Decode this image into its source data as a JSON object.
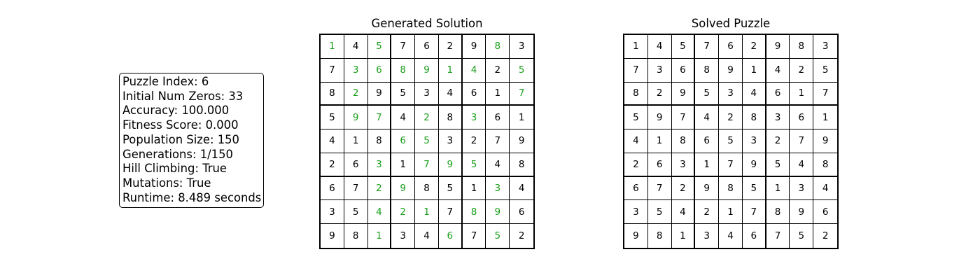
{
  "info": {
    "lines": [
      "Puzzle Index: 6",
      "Initial Num Zeros: 33",
      "Accuracy: 100.000",
      "Fitness Score: 0.000",
      "Population Size: 150",
      "Generations: 1/150",
      "Hill Climbing: True",
      "Mutations: True",
      "Runtime: 8.489 seconds"
    ]
  },
  "colors": {
    "filled": "#1a9e1a",
    "given": "#000000"
  },
  "boards": [
    {
      "title": "Generated Solution",
      "cells": [
        [
          1,
          4,
          5,
          7,
          6,
          2,
          9,
          8,
          3
        ],
        [
          7,
          3,
          6,
          8,
          9,
          1,
          4,
          2,
          5
        ],
        [
          8,
          2,
          9,
          5,
          3,
          4,
          6,
          1,
          7
        ],
        [
          5,
          9,
          7,
          4,
          2,
          8,
          3,
          6,
          1
        ],
        [
          4,
          1,
          8,
          6,
          5,
          3,
          2,
          7,
          9
        ],
        [
          2,
          6,
          3,
          1,
          7,
          9,
          5,
          4,
          8
        ],
        [
          6,
          7,
          2,
          9,
          8,
          5,
          1,
          3,
          4
        ],
        [
          3,
          5,
          4,
          2,
          1,
          7,
          8,
          9,
          6
        ],
        [
          9,
          8,
          1,
          3,
          4,
          6,
          7,
          5,
          2
        ]
      ],
      "highlight": [
        [
          1,
          0,
          1,
          0,
          0,
          0,
          0,
          1,
          0
        ],
        [
          0,
          1,
          1,
          1,
          1,
          1,
          1,
          0,
          1
        ],
        [
          0,
          1,
          0,
          0,
          0,
          0,
          0,
          0,
          1
        ],
        [
          0,
          1,
          1,
          0,
          1,
          0,
          1,
          0,
          0
        ],
        [
          0,
          0,
          0,
          1,
          1,
          0,
          0,
          0,
          0
        ],
        [
          0,
          0,
          1,
          0,
          1,
          1,
          1,
          0,
          0
        ],
        [
          0,
          0,
          1,
          1,
          0,
          0,
          0,
          1,
          0
        ],
        [
          0,
          0,
          1,
          1,
          1,
          0,
          1,
          1,
          0
        ],
        [
          0,
          0,
          1,
          0,
          0,
          1,
          0,
          1,
          0
        ]
      ]
    },
    {
      "title": "Solved Puzzle",
      "cells": [
        [
          1,
          4,
          5,
          7,
          6,
          2,
          9,
          8,
          3
        ],
        [
          7,
          3,
          6,
          8,
          9,
          1,
          4,
          2,
          5
        ],
        [
          8,
          2,
          9,
          5,
          3,
          4,
          6,
          1,
          7
        ],
        [
          5,
          9,
          7,
          4,
          2,
          8,
          3,
          6,
          1
        ],
        [
          4,
          1,
          8,
          6,
          5,
          3,
          2,
          7,
          9
        ],
        [
          2,
          6,
          3,
          1,
          7,
          9,
          5,
          4,
          8
        ],
        [
          6,
          7,
          2,
          9,
          8,
          5,
          1,
          3,
          4
        ],
        [
          3,
          5,
          4,
          2,
          1,
          7,
          8,
          9,
          6
        ],
        [
          9,
          8,
          1,
          3,
          4,
          6,
          7,
          5,
          2
        ]
      ],
      "highlight": []
    }
  ]
}
